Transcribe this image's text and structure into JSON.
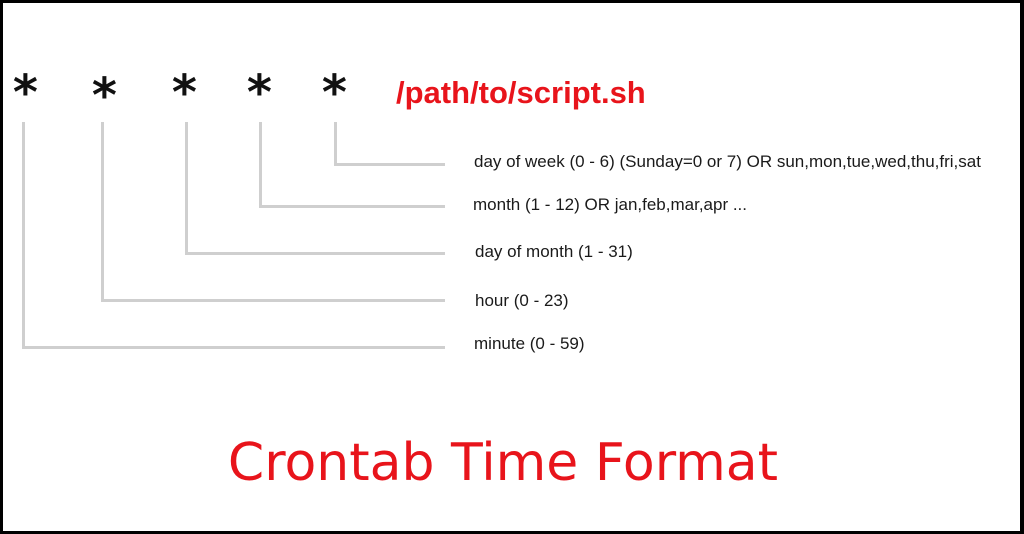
{
  "diagram": {
    "fields": [
      "*",
      "*",
      "*",
      "*",
      "*"
    ],
    "command": "/path/to/script.sh",
    "labels": {
      "day_of_week": "day of week (0 - 6) (Sunday=0 or 7) OR sun,mon,tue,wed,thu,fri,sat",
      "month": "month (1 - 12) OR jan,feb,mar,apr ...",
      "day_of_month": "day of month (1 - 31)",
      "hour": "hour (0 - 23)",
      "minute": "minute (0 - 59)"
    },
    "title": "Crontab Time Format",
    "colors": {
      "accent": "#e8141b",
      "connector": "#cfcfcf",
      "border": "#000000"
    }
  }
}
